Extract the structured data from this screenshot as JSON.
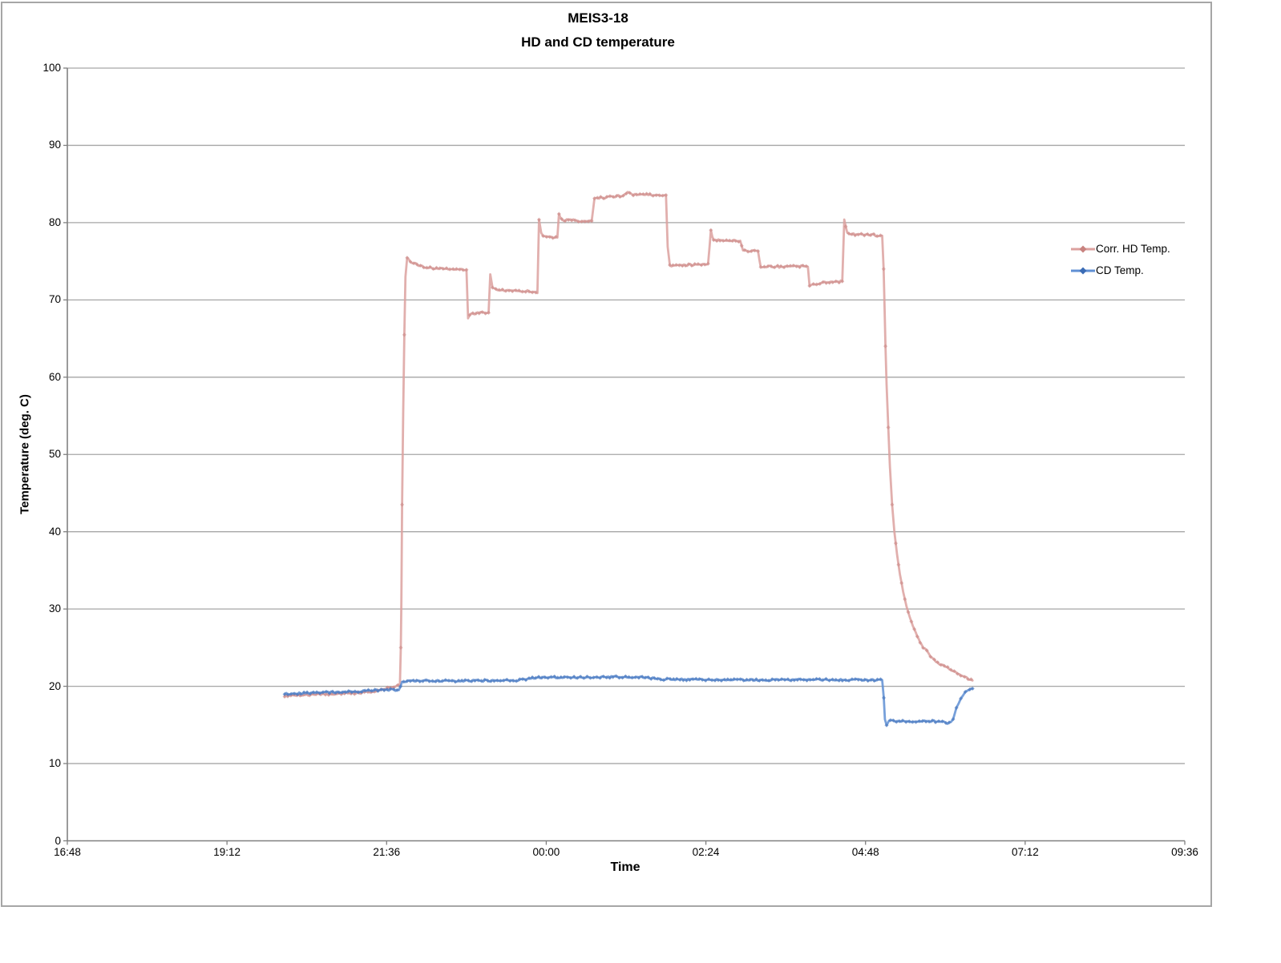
{
  "chart": {
    "title_line1": "MEIS3-18",
    "title_line2": "HD and CD temperature",
    "y_axis_title": "Temperature (deg. C)",
    "x_axis_title": "Time"
  },
  "colors": {
    "gridline": "#a6a6a6",
    "axis": "#808080",
    "chart_border": "#a6a6a6",
    "hd_line": "#dca19f",
    "hd_marker": "#c8827f",
    "cd_line": "#5f8fd4",
    "cd_marker": "#3b6cb5",
    "text": "#000000"
  },
  "chart_data": {
    "type": "line",
    "title": "MEIS3-18",
    "subtitle": "HD and CD temperature",
    "xlabel": "Time",
    "ylabel": "Temperature (deg. C)",
    "ylim": [
      0,
      100
    ],
    "y_ticks": [
      0,
      10,
      20,
      30,
      40,
      50,
      60,
      70,
      80,
      90,
      100
    ],
    "x_ticks": [
      {
        "label": "16:48",
        "minutes": 0
      },
      {
        "label": "19:12",
        "minutes": 144
      },
      {
        "label": "21:36",
        "minutes": 288
      },
      {
        "label": "00:00",
        "minutes": 432
      },
      {
        "label": "02:24",
        "minutes": 576
      },
      {
        "label": "04:48",
        "minutes": 720
      },
      {
        "label": "07:12",
        "minutes": 864
      },
      {
        "label": "09:36",
        "minutes": 1008
      }
    ],
    "x_range_minutes": [
      0,
      1008
    ],
    "grid": "horizontal-only",
    "legend_position": "right",
    "series": [
      {
        "name": "Corr. HD Temp.",
        "color": "#dca19f",
        "marker_color": "#c8827f",
        "marker": "diamond",
        "jitter": 0.14,
        "points_format": "[minutes_after_16:48, deg_C]",
        "points": [
          [
            196,
            18.8
          ],
          [
            210,
            18.9
          ],
          [
            230,
            18.95
          ],
          [
            250,
            19.05
          ],
          [
            268,
            19.2
          ],
          [
            283,
            19.5
          ],
          [
            293,
            19.9
          ],
          [
            298,
            20.15
          ],
          [
            300,
            20.3
          ],
          [
            300.8,
            25.0
          ],
          [
            301.3,
            31.0
          ],
          [
            302,
            43.5
          ],
          [
            303,
            55.6
          ],
          [
            304,
            65.5
          ],
          [
            305,
            73.0
          ],
          [
            306.5,
            75.4
          ],
          [
            311,
            74.8
          ],
          [
            320,
            74.35
          ],
          [
            333,
            74.1
          ],
          [
            348,
            74.0
          ],
          [
            360,
            73.9
          ],
          [
            361.5,
            67.7
          ],
          [
            363,
            68.1
          ],
          [
            370,
            68.3
          ],
          [
            380,
            68.35
          ],
          [
            381.5,
            73.3
          ],
          [
            383.5,
            71.7
          ],
          [
            388,
            71.3
          ],
          [
            400,
            71.25
          ],
          [
            412,
            71.2
          ],
          [
            424,
            70.9
          ],
          [
            425.5,
            80.4
          ],
          [
            427.5,
            78.6
          ],
          [
            431,
            78.2
          ],
          [
            442,
            78.05
          ],
          [
            443.5,
            81.0
          ],
          [
            446,
            80.35
          ],
          [
            455,
            80.3
          ],
          [
            473,
            80.2
          ],
          [
            475.5,
            83.2
          ],
          [
            488,
            83.3
          ],
          [
            500,
            83.5
          ],
          [
            505.5,
            83.9
          ],
          [
            509,
            83.6
          ],
          [
            524,
            83.6
          ],
          [
            540,
            83.55
          ],
          [
            541.5,
            76.9
          ],
          [
            543.5,
            74.4
          ],
          [
            552,
            74.5
          ],
          [
            566,
            74.55
          ],
          [
            578,
            74.7
          ],
          [
            580.5,
            78.9
          ],
          [
            583,
            77.8
          ],
          [
            596,
            77.7
          ],
          [
            607,
            77.65
          ],
          [
            609.5,
            76.35
          ],
          [
            623,
            76.3
          ],
          [
            625.5,
            74.15
          ],
          [
            632,
            74.3
          ],
          [
            648,
            74.3
          ],
          [
            662,
            74.35
          ],
          [
            668,
            74.3
          ],
          [
            669.5,
            71.7
          ],
          [
            673,
            72.1
          ],
          [
            686,
            72.25
          ],
          [
            699,
            72.4
          ],
          [
            700.8,
            80.4
          ],
          [
            703.5,
            78.6
          ],
          [
            712,
            78.45
          ],
          [
            726,
            78.4
          ],
          [
            735,
            78.3
          ],
          [
            736.3,
            74.0
          ],
          [
            737,
            70.2
          ],
          [
            738,
            64.0
          ],
          [
            739,
            59.0
          ],
          [
            740.5,
            53.5
          ],
          [
            742,
            48.5
          ],
          [
            744,
            43.5
          ],
          [
            746,
            40.0
          ],
          [
            748.5,
            37.0
          ],
          [
            751,
            34.5
          ],
          [
            754,
            32.2
          ],
          [
            757,
            30.3
          ],
          [
            760,
            28.9
          ],
          [
            764,
            27.3
          ],
          [
            768,
            26.1
          ],
          [
            772,
            25.1
          ],
          [
            777,
            24.2
          ],
          [
            782,
            23.4
          ],
          [
            788,
            22.8
          ],
          [
            794,
            22.4
          ],
          [
            800,
            22.0
          ],
          [
            806,
            21.5
          ],
          [
            811,
            21.1
          ],
          [
            814,
            20.9
          ],
          [
            816.5,
            20.75
          ]
        ]
      },
      {
        "name": "CD Temp.",
        "color": "#5f8fd4",
        "marker_color": "#3b6cb5",
        "marker": "diamond",
        "jitter": 0.12,
        "points_format": "[minutes_after_16:48, deg_C]",
        "points": [
          [
            196,
            19.0
          ],
          [
            212,
            19.1
          ],
          [
            235,
            19.2
          ],
          [
            258,
            19.3
          ],
          [
            276,
            19.45
          ],
          [
            290,
            19.55
          ],
          [
            296,
            19.5
          ],
          [
            299,
            19.4
          ],
          [
            300.5,
            19.9
          ],
          [
            302,
            20.6
          ],
          [
            308,
            20.68
          ],
          [
            325,
            20.7
          ],
          [
            350,
            20.7
          ],
          [
            375,
            20.72
          ],
          [
            395,
            20.75
          ],
          [
            408,
            20.78
          ],
          [
            415,
            20.95
          ],
          [
            421,
            21.1
          ],
          [
            435,
            21.15
          ],
          [
            460,
            21.15
          ],
          [
            485,
            21.2
          ],
          [
            505,
            21.2
          ],
          [
            520,
            21.15
          ],
          [
            528,
            21.05
          ],
          [
            531,
            20.95
          ],
          [
            538,
            20.9
          ],
          [
            560,
            20.87
          ],
          [
            590,
            20.85
          ],
          [
            620,
            20.82
          ],
          [
            650,
            20.85
          ],
          [
            680,
            20.87
          ],
          [
            705,
            20.85
          ],
          [
            725,
            20.8
          ],
          [
            735,
            20.78
          ],
          [
            736.5,
            18.5
          ],
          [
            737.5,
            15.8
          ],
          [
            739,
            14.9
          ],
          [
            741,
            15.5
          ],
          [
            752,
            15.5
          ],
          [
            764,
            15.45
          ],
          [
            776,
            15.5
          ],
          [
            786,
            15.45
          ],
          [
            791,
            15.3
          ],
          [
            794,
            15.2
          ],
          [
            797,
            15.35
          ],
          [
            799,
            15.8
          ],
          [
            800.5,
            16.4
          ],
          [
            802,
            17.1
          ],
          [
            804,
            17.9
          ],
          [
            806,
            18.5
          ],
          [
            808,
            18.9
          ],
          [
            810,
            19.2
          ],
          [
            812,
            19.4
          ],
          [
            814,
            19.55
          ],
          [
            816.5,
            19.7
          ]
        ]
      }
    ]
  }
}
